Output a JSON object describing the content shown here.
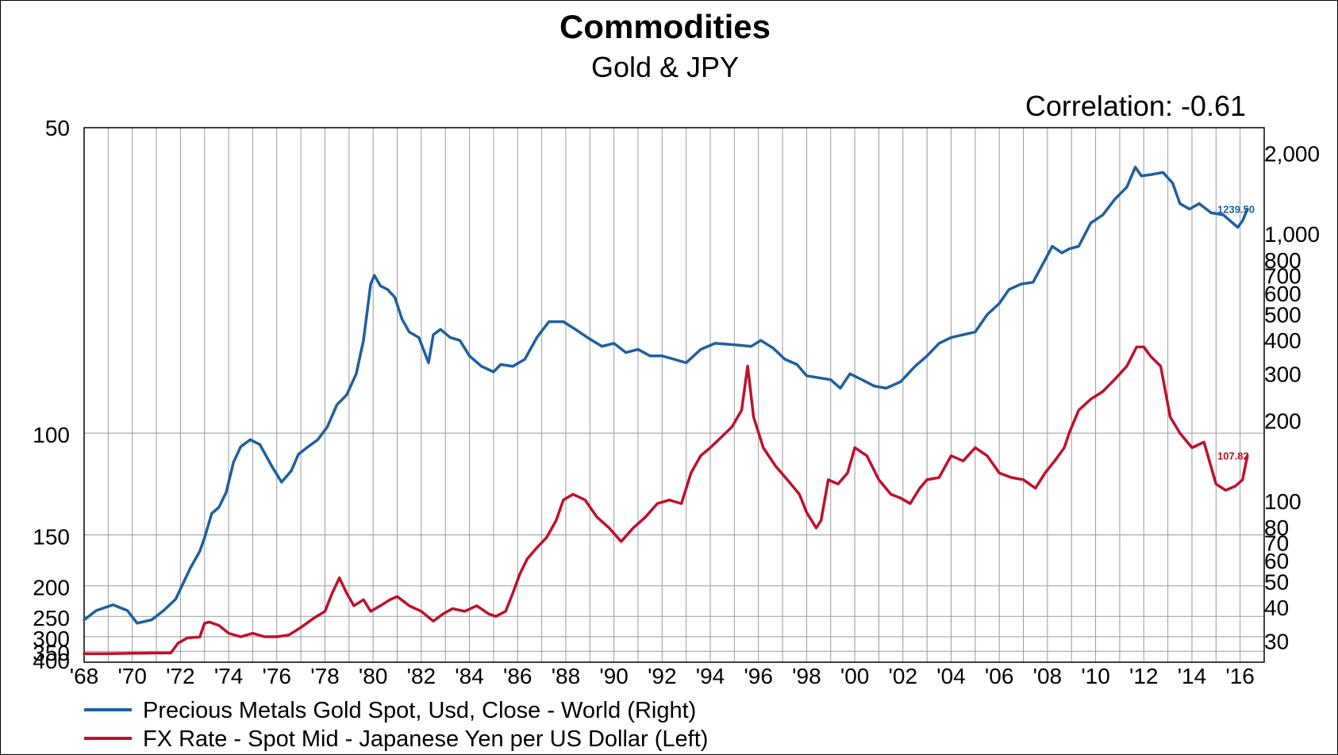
{
  "chart_data": {
    "type": "line",
    "title": "Commodities",
    "subtitle": "Gold & JPY",
    "annotation": "Correlation: -0.61",
    "x_ticks": [
      "'68",
      "'70",
      "'72",
      "'74",
      "'76",
      "'78",
      "'80",
      "'82",
      "'84",
      "'86",
      "'88",
      "'90",
      "'92",
      "'94",
      "'96",
      "'98",
      "'00",
      "'02",
      "'04",
      "'06",
      "'08",
      "'10",
      "'12",
      "'14",
      "'16"
    ],
    "xlim": [
      1968,
      2017
    ],
    "grid": true,
    "legend_position": "bottom-left",
    "left_axis": {
      "scale": "reciprocal",
      "inverted": true,
      "ylim": [
        50,
        400
      ],
      "tick_labels": [
        "50",
        "100",
        "150",
        "200",
        "250",
        "300",
        "350",
        "400"
      ],
      "ticks": [
        50,
        100,
        150,
        200,
        250,
        300,
        350,
        400
      ]
    },
    "right_axis": {
      "scale": "log",
      "ylim": [
        25,
        2500
      ],
      "tick_labels": [
        "2,000",
        "1,000",
        "800",
        "700",
        "600",
        "500",
        "400",
        "300",
        "200",
        "100",
        "80",
        "70",
        "60",
        "50",
        "40",
        "30"
      ],
      "ticks": [
        2000,
        1000,
        800,
        700,
        600,
        500,
        400,
        300,
        200,
        100,
        80,
        70,
        60,
        50,
        40,
        30
      ]
    },
    "series": [
      {
        "name": "Precious Metals Gold Spot, Usd, Close - World (Right)",
        "axis": "right",
        "color": "#1f5fa0",
        "last_label": "1239.50",
        "x": [
          1968.0,
          1968.5,
          1969.2,
          1969.8,
          1970.2,
          1970.8,
          1971.3,
          1971.8,
          1972.4,
          1972.8,
          1973.0,
          1973.3,
          1973.6,
          1973.9,
          1974.2,
          1974.5,
          1974.9,
          1975.3,
          1975.8,
          1976.2,
          1976.6,
          1976.9,
          1977.3,
          1977.7,
          1978.1,
          1978.5,
          1978.9,
          1979.3,
          1979.6,
          1979.9,
          1980.05,
          1980.3,
          1980.6,
          1980.9,
          1981.2,
          1981.5,
          1981.9,
          1982.3,
          1982.5,
          1982.8,
          1983.2,
          1983.6,
          1984.0,
          1984.5,
          1985.0,
          1985.3,
          1985.8,
          1986.3,
          1986.8,
          1987.3,
          1987.9,
          1988.4,
          1988.9,
          1989.5,
          1990.0,
          1990.5,
          1991.0,
          1991.5,
          1992.0,
          1992.5,
          1993.0,
          1993.6,
          1994.2,
          1995.0,
          1995.7,
          1996.1,
          1996.6,
          1997.1,
          1997.6,
          1998.0,
          1998.5,
          1999.0,
          1999.4,
          1999.8,
          2000.3,
          2000.8,
          2001.3,
          2001.9,
          2002.5,
          2003.0,
          2003.5,
          2004.0,
          2004.5,
          2005.0,
          2005.5,
          2006.0,
          2006.4,
          2006.9,
          2007.4,
          2007.9,
          2008.2,
          2008.6,
          2008.9,
          2009.3,
          2009.8,
          2010.3,
          2010.8,
          2011.3,
          2011.65,
          2011.9,
          2012.3,
          2012.8,
          2013.2,
          2013.5,
          2013.9,
          2014.3,
          2014.8,
          2015.3,
          2015.9,
          2016.1,
          2016.3
        ],
        "y": [
          36,
          39,
          41,
          39,
          35,
          36,
          39,
          43,
          56,
          65,
          73,
          90,
          95,
          108,
          140,
          160,
          170,
          163,
          135,
          118,
          130,
          150,
          160,
          170,
          190,
          230,
          250,
          300,
          400,
          650,
          700,
          640,
          620,
          580,
          480,
          430,
          410,
          330,
          420,
          440,
          410,
          400,
          350,
          320,
          305,
          325,
          320,
          340,
          410,
          470,
          470,
          440,
          410,
          380,
          390,
          360,
          370,
          350,
          350,
          340,
          330,
          370,
          390,
          385,
          380,
          400,
          375,
          340,
          325,
          295,
          290,
          285,
          265,
          300,
          285,
          270,
          265,
          280,
          320,
          350,
          390,
          410,
          420,
          430,
          500,
          550,
          620,
          650,
          660,
          800,
          900,
          850,
          880,
          900,
          1100,
          1180,
          1350,
          1500,
          1780,
          1650,
          1670,
          1700,
          1550,
          1300,
          1240,
          1300,
          1200,
          1180,
          1060,
          1120,
          1240
        ]
      },
      {
        "name": "FX Rate - Spot Mid - Japanese Yen per US Dollar (Left)",
        "axis": "left",
        "color": "#c0102a",
        "last_label": "107.82",
        "x": [
          1968.0,
          1969.0,
          1970.0,
          1971.0,
          1971.6,
          1971.9,
          1972.3,
          1972.8,
          1973.0,
          1973.2,
          1973.6,
          1974.0,
          1974.5,
          1975.0,
          1975.5,
          1976.0,
          1976.5,
          1977.0,
          1977.5,
          1978.0,
          1978.3,
          1978.6,
          1978.9,
          1979.2,
          1979.6,
          1979.9,
          1980.3,
          1980.7,
          1981.0,
          1981.5,
          1982.0,
          1982.5,
          1982.9,
          1983.3,
          1983.8,
          1984.3,
          1984.8,
          1985.1,
          1985.5,
          1985.8,
          1986.1,
          1986.4,
          1986.8,
          1987.2,
          1987.6,
          1987.9,
          1988.3,
          1988.8,
          1989.3,
          1989.8,
          1990.3,
          1990.8,
          1991.3,
          1991.8,
          1992.3,
          1992.8,
          1993.2,
          1993.6,
          1994.0,
          1994.5,
          1994.9,
          1995.3,
          1995.55,
          1995.8,
          1996.2,
          1996.7,
          1997.2,
          1997.7,
          1998.0,
          1998.4,
          1998.6,
          1998.9,
          1999.3,
          1999.7,
          2000.0,
          2000.5,
          2001.0,
          2001.5,
          2001.9,
          2002.3,
          2002.7,
          2003.0,
          2003.5,
          2004.0,
          2004.5,
          2005.0,
          2005.5,
          2006.0,
          2006.5,
          2007.0,
          2007.5,
          2007.9,
          2008.3,
          2008.7,
          2008.9,
          2009.3,
          2009.8,
          2010.3,
          2010.8,
          2011.3,
          2011.7,
          2012.0,
          2012.3,
          2012.7,
          2013.1,
          2013.5,
          2014.0,
          2014.5,
          2015.0,
          2015.4,
          2015.8,
          2016.1,
          2016.3
        ],
        "y": [
          360,
          360,
          358,
          357,
          357,
          320,
          303,
          301,
          265,
          262,
          270,
          290,
          300,
          290,
          300,
          300,
          295,
          275,
          255,
          240,
          210,
          190,
          210,
          230,
          220,
          240,
          230,
          220,
          215,
          230,
          240,
          260,
          245,
          235,
          240,
          230,
          245,
          250,
          240,
          210,
          185,
          170,
          160,
          152,
          140,
          128,
          125,
          128,
          138,
          145,
          155,
          145,
          138,
          130,
          128,
          130,
          115,
          108,
          105,
          101,
          98,
          93,
          82,
          95,
          105,
          112,
          118,
          125,
          135,
          145,
          140,
          118,
          120,
          115,
          105,
          108,
          118,
          125,
          127,
          130,
          122,
          118,
          117,
          108,
          110,
          105,
          108,
          115,
          117,
          118,
          122,
          115,
          110,
          105,
          100,
          93,
          90,
          88,
          85,
          82,
          78,
          78,
          80,
          82,
          95,
          100,
          105,
          103,
          120,
          123,
          121,
          118,
          108
        ]
      }
    ]
  }
}
